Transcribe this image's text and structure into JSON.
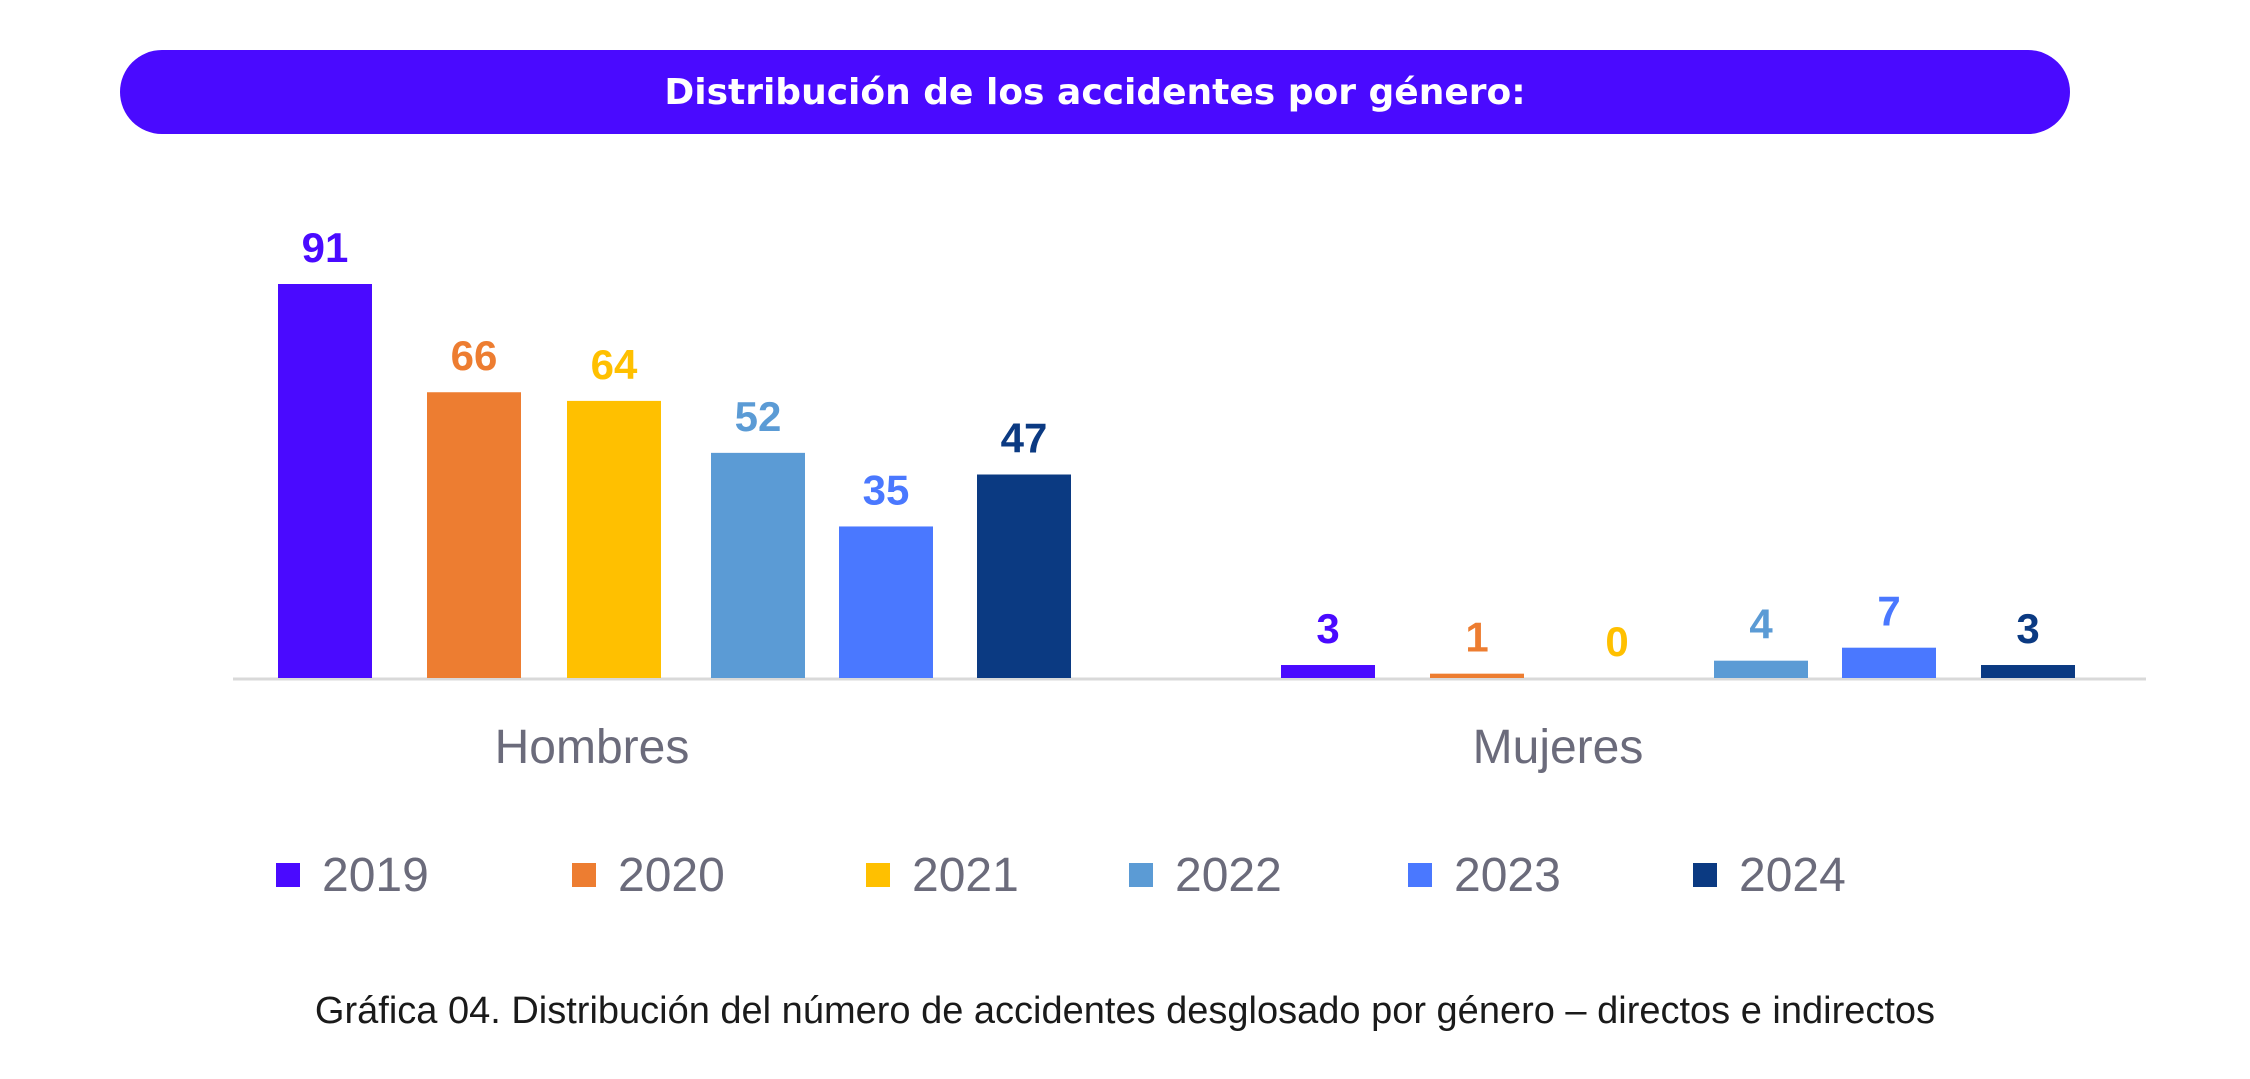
{
  "banner": {
    "title": "Distribución de los accidentes por género:"
  },
  "caption": "Gráfica 04. Distribución del número de accidentes desglosado por género – directos e indirectos",
  "chart_data": {
    "type": "bar",
    "categories": [
      "Hombres",
      "Mujeres"
    ],
    "series": [
      {
        "name": "2019",
        "values": [
          91,
          3
        ],
        "color": "#4a0aff"
      },
      {
        "name": "2020",
        "values": [
          66,
          1
        ],
        "color": "#ed7d31"
      },
      {
        "name": "2021",
        "values": [
          64,
          0
        ],
        "color": "#ffc000"
      },
      {
        "name": "2022",
        "values": [
          52,
          4
        ],
        "color": "#5b9bd5"
      },
      {
        "name": "2023",
        "values": [
          35,
          7
        ],
        "color": "#4a78ff"
      },
      {
        "name": "2024",
        "values": [
          47,
          3
        ],
        "color": "#0b3a82"
      }
    ],
    "data_labels": true,
    "legend_position": "bottom",
    "grid": false,
    "ylim": [
      0,
      95
    ]
  }
}
